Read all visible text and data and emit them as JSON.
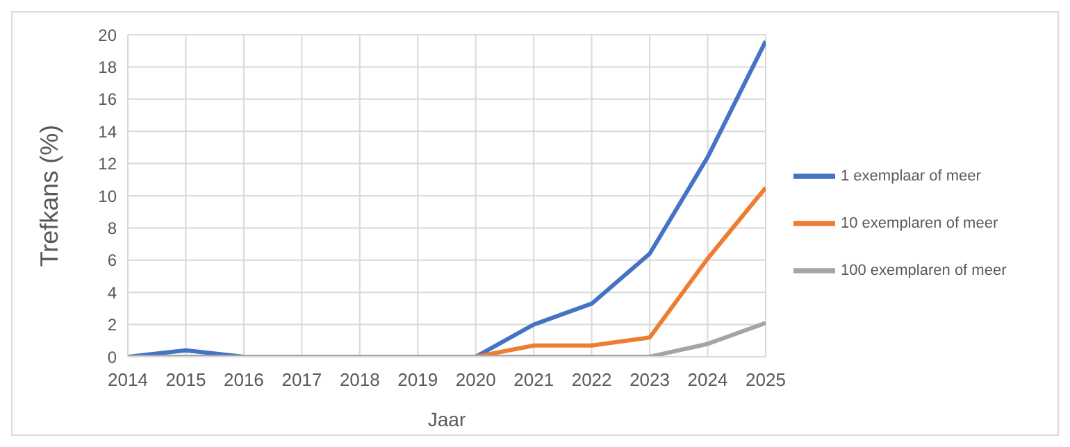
{
  "chart_data": {
    "type": "line",
    "xlabel": "Jaar",
    "ylabel": "Trefkans (%)",
    "x": [
      2014,
      2015,
      2016,
      2017,
      2018,
      2019,
      2020,
      2021,
      2022,
      2023,
      2024,
      2025
    ],
    "series": [
      {
        "name": "1 exemplaar of meer",
        "color": "#4472c4",
        "values": [
          0,
          0.4,
          0,
          0,
          0,
          0,
          0,
          2.0,
          3.3,
          6.4,
          12.4,
          19.6
        ]
      },
      {
        "name": "10 exemplaren of meer",
        "color": "#ed7d31",
        "values": [
          null,
          null,
          null,
          null,
          null,
          null,
          0,
          0.7,
          0.7,
          1.2,
          6.1,
          10.5
        ]
      },
      {
        "name": "100 exemplaren of meer",
        "color": "#a5a5a5",
        "values": [
          0,
          0,
          0,
          0,
          0,
          0,
          0,
          0,
          0,
          0,
          0.8,
          2.1
        ]
      }
    ],
    "xlim": [
      2014,
      2025
    ],
    "xticks": [
      2014,
      2015,
      2016,
      2017,
      2018,
      2019,
      2020,
      2021,
      2022,
      2023,
      2024,
      2025
    ],
    "ylim": [
      0,
      20
    ],
    "yticks": [
      0,
      2,
      4,
      6,
      8,
      10,
      12,
      14,
      16,
      18,
      20
    ],
    "grid": true,
    "legend": "right",
    "marker": "none",
    "line_style": "solid"
  }
}
